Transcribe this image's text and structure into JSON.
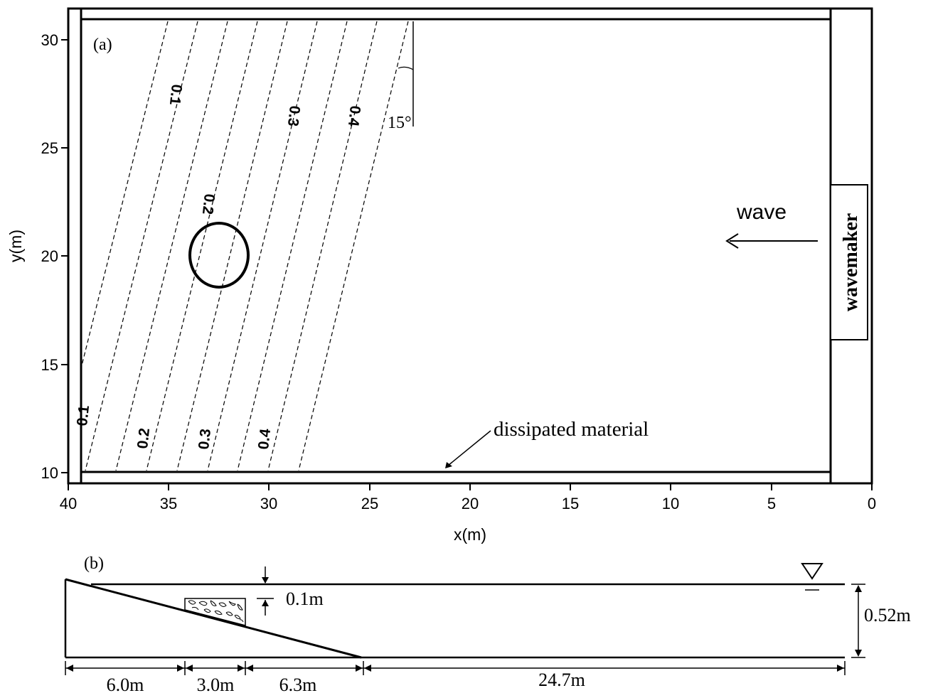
{
  "panel_a": {
    "label": "(a)",
    "xlabel": "x(m)",
    "ylabel": "y(m)",
    "x_ticks": [
      "40",
      "35",
      "30",
      "25",
      "20",
      "15",
      "10",
      "5",
      "0"
    ],
    "y_ticks": [
      "10",
      "15",
      "20",
      "25",
      "30"
    ],
    "contour_labels": {
      "top": [
        "0.1",
        "0.2",
        "0.3",
        "0.4"
      ],
      "bottom": [
        "0.1",
        "0.2",
        "0.3",
        "0.4"
      ]
    },
    "angle_label": "15°",
    "wave_label": "wave",
    "wavemaker_label": "wavemaker",
    "dissipated_label": "dissipated material"
  },
  "panel_b": {
    "label": "(b)",
    "gap_label": "0.1m",
    "depth_label": "0.52m",
    "dims": [
      "6.0m",
      "3.0m",
      "6.3m",
      "24.7m"
    ]
  }
}
